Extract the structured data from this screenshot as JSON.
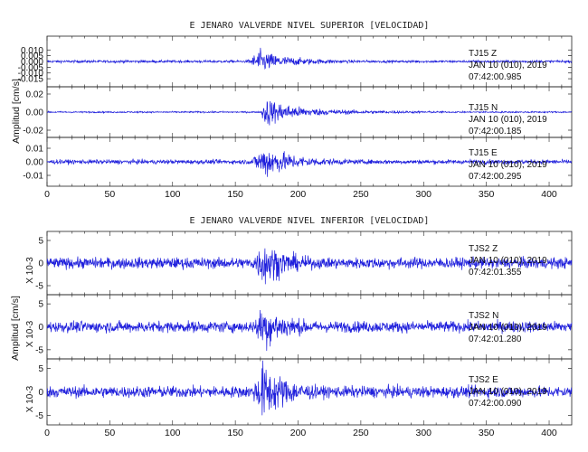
{
  "chart_data": [
    {
      "type": "line",
      "title": "E JENARO VALVERDE NIVEL SUPERIOR [VELOCIDAD]",
      "ylabel": "Amplitud [cm/s]",
      "xlabel": "",
      "xlim": [
        0,
        418
      ],
      "x_ticks": [
        0,
        50,
        100,
        150,
        200,
        250,
        300,
        350,
        400
      ],
      "grid": false,
      "color": "#1f1fdc",
      "series": [
        {
          "name": "TJ15   Z",
          "date": "JAN 10 (010), 2019",
          "time": "07:42:00.985",
          "ylim": [
            -0.022,
            0.022
          ],
          "y_ticks": [
            "0.010",
            "0.005",
            "0.000",
            "-0.005",
            "-0.010",
            "-0.015"
          ],
          "onset": 158,
          "peak": 168,
          "peak_amp": 0.011,
          "noise": 0.0008
        },
        {
          "name": "TJ15   N",
          "date": "JAN 10 (010), 2019",
          "time": "07:42:00.185",
          "ylim": [
            -0.028,
            0.028
          ],
          "y_ticks": [
            "0.02",
            "0.00",
            "-0.02"
          ],
          "onset": 170,
          "peak": 173,
          "peak_amp": 0.018,
          "noise": 0.0006
        },
        {
          "name": "TJ15   E",
          "date": "JAN 10 (010), 2019",
          "time": "07:42:00.295",
          "ylim": [
            -0.018,
            0.018
          ],
          "y_ticks": [
            "0.01",
            "0.00",
            "-0.01"
          ],
          "onset": 160,
          "peak": 172,
          "peak_amp": 0.014,
          "noise": 0.0012
        }
      ]
    },
    {
      "type": "line",
      "title": "E JENARO VALVERDE NIVEL INFERIOR [VELOCIDAD]",
      "ylabel": "Amplitud [cm/s]",
      "xlabel": "",
      "xlim": [
        0,
        418
      ],
      "x_ticks": [
        0,
        50,
        100,
        150,
        200,
        250,
        300,
        350,
        400
      ],
      "grid": false,
      "color": "#1f1fdc",
      "series": [
        {
          "name": "TJS2   Z",
          "date": "JAN 10 (010), 2019",
          "time": "07:42:01.355",
          "scale_label": "X 10-3",
          "ylim": [
            -7,
            7
          ],
          "y_ticks": [
            "5",
            "0",
            "-5"
          ],
          "onset": 160,
          "peak": 171,
          "peak_amp": 5.5,
          "noise": 0.9
        },
        {
          "name": "TJS2   N",
          "date": "JAN 10 (010), 2019",
          "time": "07:42:01.280",
          "scale_label": "X 10-3",
          "ylim": [
            -7,
            7
          ],
          "y_ticks": [
            "5",
            "0",
            "-5"
          ],
          "onset": 160,
          "peak": 171,
          "peak_amp": 5.5,
          "noise": 0.9
        },
        {
          "name": "TJS2   E",
          "date": "JAN 10 (010), 2019",
          "time": "07:42:00.090",
          "scale_label": "X 10-3",
          "ylim": [
            -7,
            7
          ],
          "y_ticks": [
            "5",
            "0",
            "-5"
          ],
          "onset": 160,
          "peak": 171,
          "peak_amp": 6.5,
          "noise": 0.9
        }
      ]
    }
  ]
}
